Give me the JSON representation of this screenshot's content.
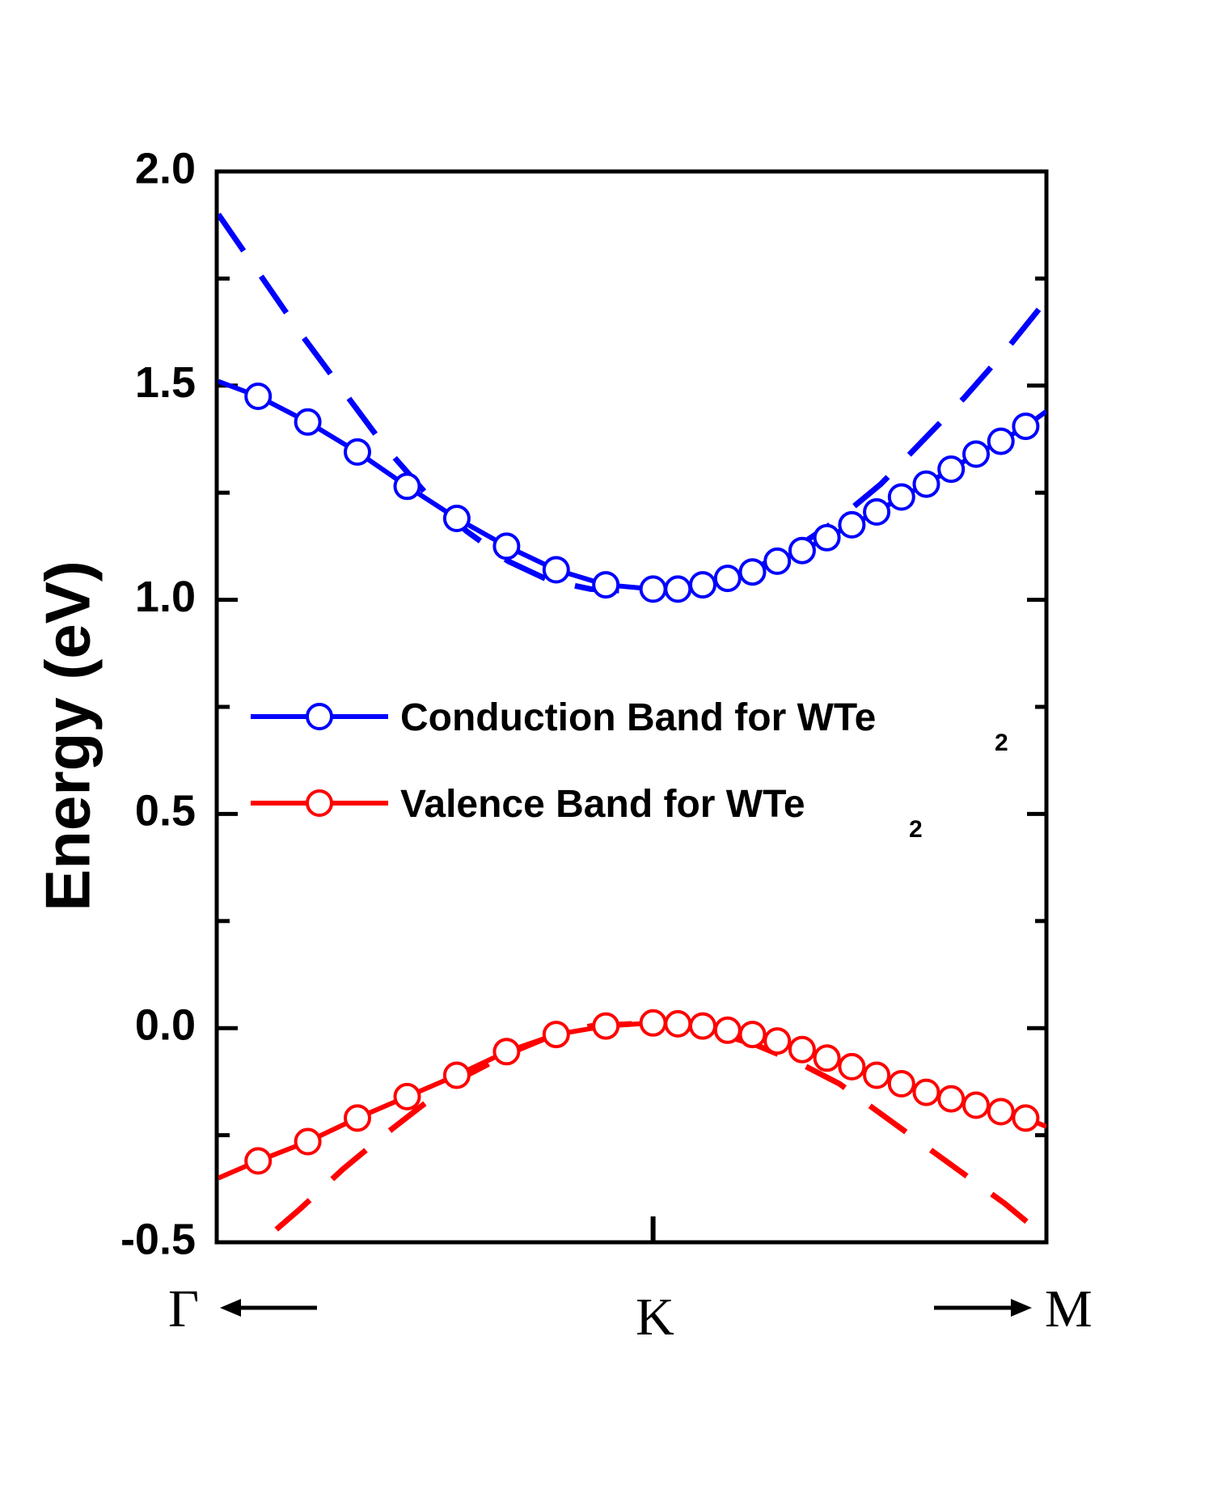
{
  "chart_data": {
    "type": "line",
    "title": "",
    "xlabel": "",
    "ylabel": "Energy (eV)",
    "ylim": [
      -0.5,
      2.0
    ],
    "xlim": [
      0,
      1
    ],
    "yticks": [
      {
        "value": 2.0,
        "label": "2.0"
      },
      {
        "value": 1.5,
        "label": "1.5"
      },
      {
        "value": 1.0,
        "label": "1.0"
      },
      {
        "value": 0.5,
        "label": "0.5"
      },
      {
        "value": 0.0,
        "label": "0.0"
      },
      {
        "value": -0.5,
        "label": "-0.5"
      }
    ],
    "yminor": [
      1.75,
      1.25,
      0.75,
      0.25,
      -0.25
    ],
    "k_points": {
      "left": "Γ",
      "center": "K",
      "right": "M",
      "center_x": 0.525
    },
    "legend": [
      {
        "label": "Conduction Band for WTe",
        "subscript": "2",
        "color": "#0000ff"
      },
      {
        "label": "Valence Band for WTe",
        "subscript": "2",
        "color": "#ff0000"
      }
    ],
    "series": [
      {
        "name": "Conduction Band for WTe2",
        "color": "#0000ff",
        "style": "solid-circles",
        "x": [
          0.0,
          0.048,
          0.108,
          0.168,
          0.228,
          0.288,
          0.348,
          0.408,
          0.468,
          0.525,
          0.555,
          0.585,
          0.615,
          0.645,
          0.675,
          0.705,
          0.735,
          0.765,
          0.795,
          0.825,
          0.855,
          0.885,
          0.915,
          0.945,
          0.975,
          1.0
        ],
        "values": [
          1.51,
          1.475,
          1.415,
          1.345,
          1.265,
          1.19,
          1.125,
          1.07,
          1.035,
          1.025,
          1.025,
          1.035,
          1.05,
          1.065,
          1.09,
          1.115,
          1.145,
          1.175,
          1.205,
          1.24,
          1.27,
          1.305,
          1.34,
          1.37,
          1.405,
          1.44
        ]
      },
      {
        "name": "Valence Band for WTe2",
        "color": "#ff0000",
        "style": "solid-circles",
        "x": [
          0.0,
          0.048,
          0.108,
          0.168,
          0.228,
          0.288,
          0.348,
          0.408,
          0.468,
          0.525,
          0.555,
          0.585,
          0.615,
          0.645,
          0.675,
          0.705,
          0.735,
          0.765,
          0.795,
          0.825,
          0.855,
          0.885,
          0.915,
          0.945,
          0.975,
          1.0
        ],
        "values": [
          -0.35,
          -0.31,
          -0.265,
          -0.21,
          -0.16,
          -0.11,
          -0.055,
          -0.015,
          0.005,
          0.012,
          0.01,
          0.005,
          -0.005,
          -0.015,
          -0.03,
          -0.05,
          -0.07,
          -0.09,
          -0.11,
          -0.13,
          -0.15,
          -0.165,
          -0.18,
          -0.195,
          -0.21,
          -0.23
        ]
      },
      {
        "name": "Conduction Band (dashed)",
        "color": "#0000ff",
        "style": "dashed",
        "x": [
          0.0,
          0.05,
          0.1,
          0.15,
          0.2,
          0.25,
          0.3,
          0.35,
          0.4,
          0.45,
          0.5,
          0.525,
          0.55,
          0.6,
          0.65,
          0.7,
          0.75,
          0.8,
          0.85,
          0.9,
          0.95,
          1.0
        ],
        "values": [
          1.9,
          1.76,
          1.62,
          1.49,
          1.36,
          1.25,
          1.16,
          1.09,
          1.045,
          1.025,
          1.02,
          1.02,
          1.025,
          1.045,
          1.075,
          1.125,
          1.19,
          1.27,
          1.37,
          1.47,
          1.58,
          1.7
        ]
      },
      {
        "name": "Valence Band (dashed)",
        "color": "#ff0000",
        "style": "dashed",
        "x": [
          0.07,
          0.1,
          0.15,
          0.2,
          0.25,
          0.3,
          0.35,
          0.4,
          0.45,
          0.5,
          0.525,
          0.55,
          0.6,
          0.65,
          0.7,
          0.75,
          0.8,
          0.85,
          0.9,
          0.95,
          1.0
        ],
        "values": [
          -0.47,
          -0.42,
          -0.33,
          -0.25,
          -0.175,
          -0.11,
          -0.06,
          -0.02,
          0.005,
          0.01,
          0.01,
          0.005,
          -0.01,
          -0.04,
          -0.08,
          -0.13,
          -0.2,
          -0.27,
          -0.34,
          -0.41,
          -0.49
        ]
      }
    ]
  }
}
